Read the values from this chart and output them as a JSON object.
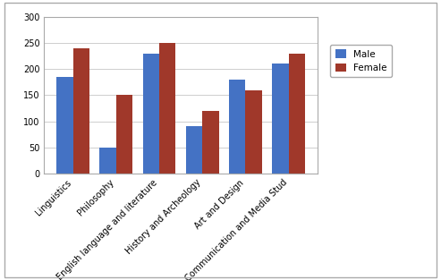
{
  "categories": [
    "Linguistics",
    "Philosophy",
    "English language and literature",
    "History and Archeology",
    "Art and Design",
    "Communication and Media Stud"
  ],
  "male_values": [
    185,
    50,
    230,
    90,
    180,
    210
  ],
  "female_values": [
    240,
    150,
    250,
    120,
    160,
    230
  ],
  "male_color": "#4472C4",
  "female_color": "#A0382A",
  "legend_labels": [
    "Male",
    "Female"
  ],
  "ylim": [
    0,
    300
  ],
  "yticks": [
    0,
    50,
    100,
    150,
    200,
    250,
    300
  ],
  "bar_width": 0.38,
  "figsize": [
    4.93,
    3.13
  ],
  "dpi": 100,
  "background_color": "#FFFFFF",
  "grid_color": "#BBBBBB",
  "tick_labelsize": 7.0,
  "legend_fontsize": 7.5,
  "border_color": "#AAAAAA"
}
